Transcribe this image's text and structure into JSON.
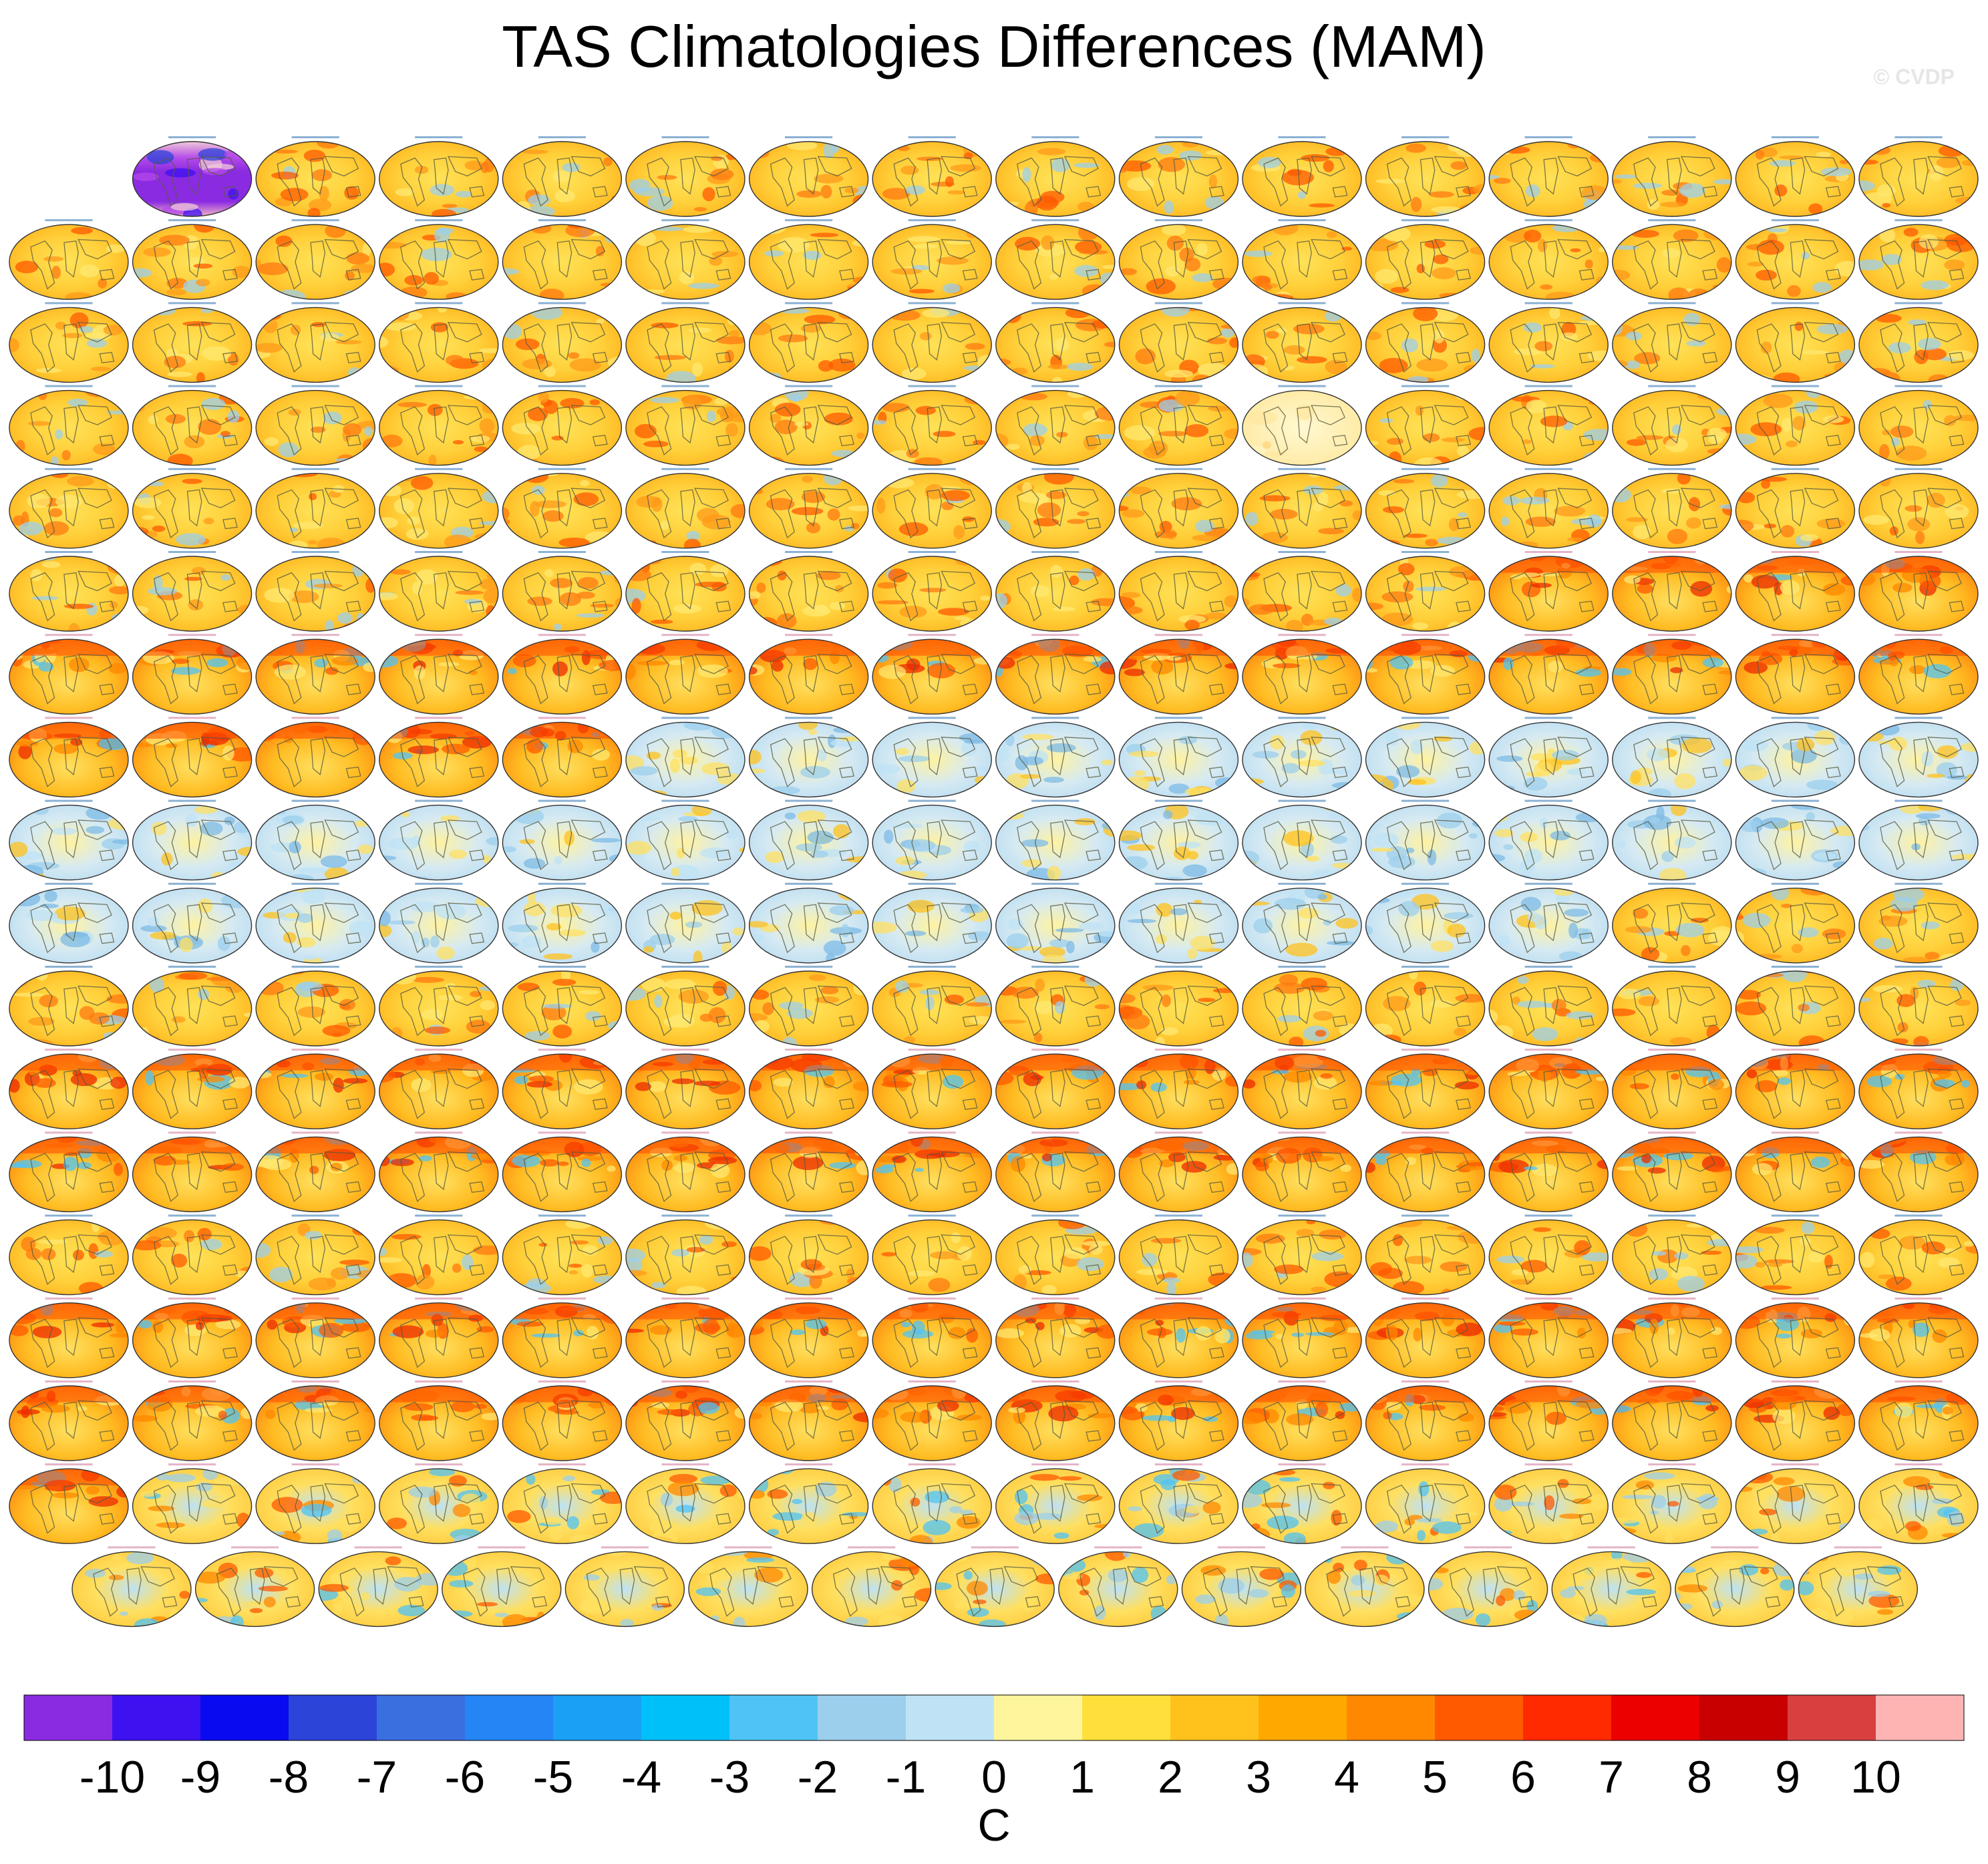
{
  "chart_data": {
    "type": "heatmap",
    "title": "TAS Climatologies Differences (MAM)",
    "watermark": "© CVDP",
    "units": "C",
    "panel_grid": {
      "columns": 16,
      "rows": 18,
      "row_panel_counts": [
        15,
        16,
        16,
        16,
        16,
        16,
        16,
        16,
        16,
        16,
        16,
        16,
        16,
        16,
        16,
        16,
        16,
        15
      ],
      "first_row_offset_cols": 1,
      "last_row_centered": true
    },
    "reference_panel": {
      "row": 0,
      "col": 1,
      "style": "observed"
    },
    "special_panels": [
      {
        "row": 3,
        "col": 10,
        "style": "pale"
      }
    ],
    "panel_styles": [
      [
        "warm",
        "warm",
        "warm",
        "warm",
        "warm",
        "warm",
        "warm",
        "warm",
        "warm",
        "warm",
        "warm",
        "warm",
        "warm",
        "warm",
        "warm"
      ],
      [
        "warm",
        "warm",
        "warm",
        "warm",
        "warm",
        "warm",
        "warm",
        "warm",
        "warm",
        "warm",
        "warm",
        "warm",
        "warm",
        "warm",
        "warm",
        "warm"
      ],
      [
        "warm",
        "warm",
        "warm",
        "warm",
        "warm",
        "warm",
        "warm",
        "warm",
        "warm",
        "warm",
        "warm",
        "warm",
        "warm",
        "warm",
        "warm",
        "warm"
      ],
      [
        "warm",
        "warm",
        "warm",
        "warm",
        "warm",
        "warm",
        "warm",
        "warm",
        "warm",
        "warm",
        "pale",
        "warm",
        "warm",
        "warm",
        "warm",
        "warm"
      ],
      [
        "warm",
        "warm",
        "warm",
        "warm",
        "warm",
        "warm",
        "warm",
        "warm",
        "warm",
        "warm",
        "warm",
        "warm",
        "warm",
        "warm",
        "warm",
        "warm"
      ],
      [
        "warm",
        "warm",
        "warm",
        "warm",
        "warm",
        "warm",
        "warm",
        "warm",
        "warm",
        "warm",
        "warm",
        "warm",
        "hot",
        "hot",
        "hot",
        "hot"
      ],
      [
        "hot",
        "hot",
        "hot",
        "hot",
        "hot",
        "hot",
        "hot",
        "hot",
        "hot",
        "hot",
        "hot",
        "hot",
        "hot",
        "hot",
        "hot",
        "hot"
      ],
      [
        "hot",
        "hot",
        "hot",
        "hot",
        "hot",
        "cool",
        "cool",
        "cool",
        "cool",
        "cool",
        "cool",
        "cool",
        "cool",
        "cool",
        "cool",
        "cool"
      ],
      [
        "cool",
        "cool",
        "cool",
        "cool",
        "cool",
        "cool",
        "cool",
        "cool",
        "cool",
        "cool",
        "cool",
        "cool",
        "cool",
        "cool",
        "cool",
        "cool"
      ],
      [
        "cool",
        "cool",
        "cool",
        "cool",
        "cool",
        "cool",
        "cool",
        "cool",
        "cool",
        "cool",
        "cool",
        "cool",
        "cool",
        "warm",
        "warm",
        "warm"
      ],
      [
        "warm",
        "warm",
        "warm",
        "warm",
        "warm",
        "warm",
        "warm",
        "warm",
        "warm",
        "warm",
        "warm",
        "warm",
        "warm",
        "warm",
        "warm",
        "warm"
      ],
      [
        "hot",
        "hot",
        "hot",
        "hot",
        "hot",
        "hot",
        "hot",
        "hot",
        "hot",
        "hot",
        "hot",
        "hot",
        "hot",
        "hot",
        "hot",
        "hot"
      ],
      [
        "hot",
        "hot",
        "hot",
        "hot",
        "hot",
        "hot",
        "hot",
        "hot",
        "hot",
        "hot",
        "hot",
        "hot",
        "hot",
        "hot",
        "hot",
        "hot"
      ],
      [
        "warm",
        "warm",
        "warm",
        "warm",
        "warm",
        "warm",
        "warm",
        "warm",
        "warm",
        "warm",
        "warm",
        "warm",
        "warm",
        "warm",
        "warm",
        "warm"
      ],
      [
        "hot",
        "hot",
        "hot",
        "hot",
        "hot",
        "hot",
        "hot",
        "hot",
        "hot",
        "hot",
        "hot",
        "hot",
        "hot",
        "hot",
        "hot",
        "hot"
      ],
      [
        "hot",
        "hot",
        "hot",
        "hot",
        "hot",
        "hot",
        "hot",
        "hot",
        "hot",
        "hot",
        "hot",
        "hot",
        "hot",
        "hot",
        "hot",
        "hot"
      ],
      [
        "hot",
        "mixed",
        "mixed",
        "mixed",
        "mixed",
        "mixed",
        "mixed",
        "mixed",
        "mixed",
        "mixed",
        "mixed",
        "mixed",
        "mixed",
        "mixed",
        "mixed",
        "mixed"
      ],
      [
        "mixed",
        "mixed",
        "mixed",
        "mixed",
        "mixed",
        "mixed",
        "mixed",
        "mixed",
        "mixed",
        "mixed",
        "mixed",
        "mixed",
        "mixed",
        "mixed",
        "mixed"
      ]
    ],
    "colorbar": {
      "colors": [
        "#8a2be2",
        "#3e12f0",
        "#0a0af0",
        "#2c44d8",
        "#3a6fe0",
        "#2685f5",
        "#1aa0f5",
        "#00c0fa",
        "#4fc3f5",
        "#9ccfec",
        "#bfe3f5",
        "#fff59c",
        "#ffdf3c",
        "#ffc21c",
        "#ffa800",
        "#ff8800",
        "#ff5a00",
        "#ff2a00",
        "#ec0000",
        "#c80000",
        "#d84040",
        "#ffb4b4"
      ],
      "tick_labels": [
        "-10",
        "-9",
        "-8",
        "-7",
        "-6",
        "-5",
        "-4",
        "-3",
        "-2",
        "-1",
        "0",
        "1",
        "2",
        "3",
        "4",
        "5",
        "6",
        "7",
        "8",
        "9",
        "10"
      ],
      "tick_values": [
        -10,
        -9,
        -8,
        -7,
        -6,
        -5,
        -4,
        -3,
        -2,
        -1,
        0,
        1,
        2,
        3,
        4,
        5,
        6,
        7,
        8,
        9,
        10
      ]
    }
  }
}
